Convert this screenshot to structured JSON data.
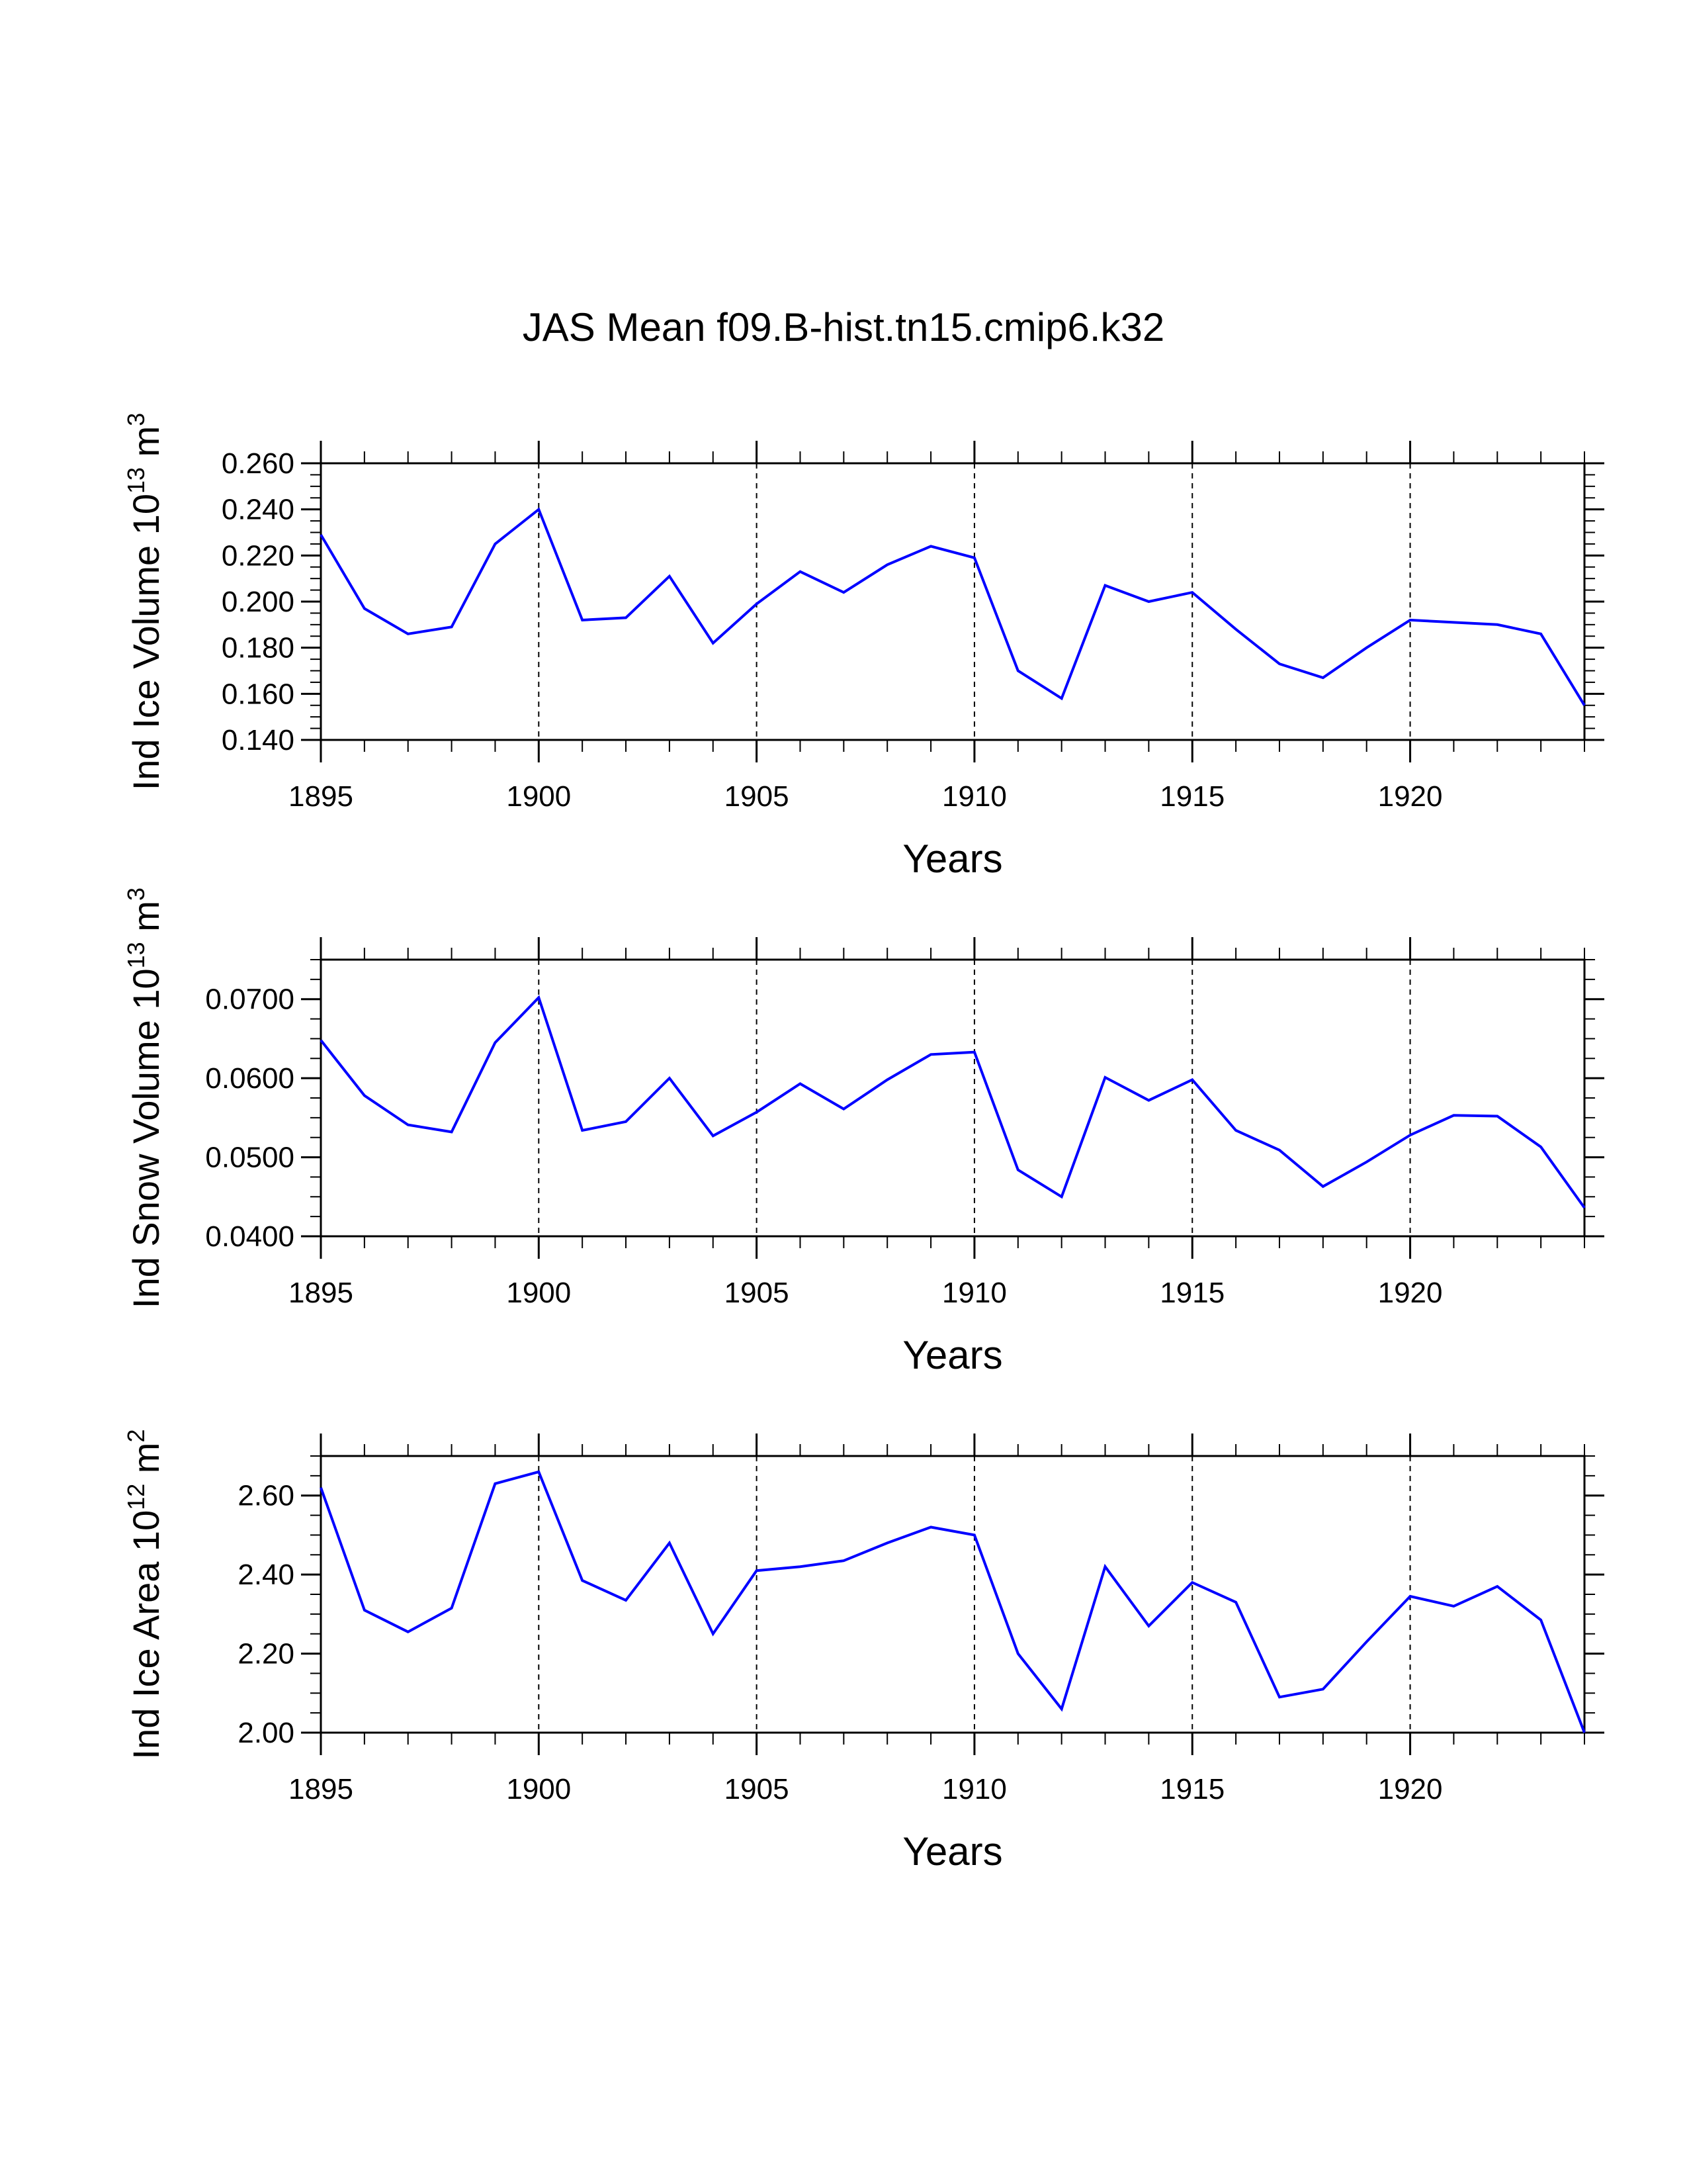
{
  "title": "JAS Mean f09.B-hist.tn15.cmip6.k32",
  "colors": {
    "line": "#0000ff",
    "axis": "#000000",
    "grid": "#000000"
  },
  "chart_data": [
    {
      "type": "line",
      "id": "ice-volume",
      "title": "",
      "ylabel_main": "Ind Ice Volume 10",
      "ylabel_exp": "13",
      "ylabel_unit": "m",
      "ylabel_unit_exp": "3",
      "xlabel": "Years",
      "xlim": [
        1895,
        1924
      ],
      "ylim": [
        0.14,
        0.26
      ],
      "yticks": [
        "0.140",
        "0.160",
        "0.180",
        "0.200",
        "0.220",
        "0.240",
        "0.260"
      ],
      "ytick_values": [
        0.14,
        0.16,
        0.18,
        0.2,
        0.22,
        0.24,
        0.26
      ],
      "xticks": [
        "1895",
        "1900",
        "1905",
        "1910",
        "1915",
        "1920"
      ],
      "xtick_values": [
        1895,
        1900,
        1905,
        1910,
        1915,
        1920
      ],
      "x": [
        1895,
        1896,
        1897,
        1898,
        1899,
        1900,
        1901,
        1902,
        1903,
        1904,
        1905,
        1906,
        1907,
        1908,
        1909,
        1910,
        1911,
        1912,
        1913,
        1914,
        1915,
        1916,
        1917,
        1918,
        1919,
        1920,
        1921,
        1922,
        1923,
        1924
      ],
      "values": [
        0.229,
        0.197,
        0.186,
        0.189,
        0.225,
        0.24,
        0.192,
        0.193,
        0.211,
        0.182,
        0.199,
        0.213,
        0.204,
        0.216,
        0.224,
        0.219,
        0.17,
        0.158,
        0.207,
        0.2,
        0.204,
        0.188,
        0.173,
        0.167,
        0.18,
        0.192,
        0.191,
        0.19,
        0.186,
        0.155
      ]
    },
    {
      "type": "line",
      "id": "snow-volume",
      "title": "",
      "ylabel_main": "Ind Snow Volume 10",
      "ylabel_exp": "13",
      "ylabel_unit": "m",
      "ylabel_unit_exp": "3",
      "xlabel": "Years",
      "xlim": [
        1895,
        1924
      ],
      "ylim": [
        0.04,
        0.075
      ],
      "yticks": [
        "0.0400",
        "0.0500",
        "0.0600",
        "0.0700"
      ],
      "ytick_values": [
        0.04,
        0.05,
        0.06,
        0.07
      ],
      "xticks": [
        "1895",
        "1900",
        "1905",
        "1910",
        "1915",
        "1920"
      ],
      "xtick_values": [
        1895,
        1900,
        1905,
        1910,
        1915,
        1920
      ],
      "x": [
        1895,
        1896,
        1897,
        1898,
        1899,
        1900,
        1901,
        1902,
        1903,
        1904,
        1905,
        1906,
        1907,
        1908,
        1909,
        1910,
        1911,
        1912,
        1913,
        1914,
        1915,
        1916,
        1917,
        1918,
        1919,
        1920,
        1921,
        1922,
        1923,
        1924
      ],
      "values": [
        0.0648,
        0.0578,
        0.0541,
        0.0532,
        0.0645,
        0.0702,
        0.0534,
        0.0545,
        0.06,
        0.0527,
        0.0557,
        0.0593,
        0.0561,
        0.0598,
        0.063,
        0.0633,
        0.0484,
        0.045,
        0.0601,
        0.0572,
        0.0598,
        0.0534,
        0.0509,
        0.0463,
        0.0494,
        0.0528,
        0.0553,
        0.0552,
        0.0513,
        0.0436
      ]
    },
    {
      "type": "line",
      "id": "ice-area",
      "title": "",
      "ylabel_main": "Ind Ice Area 10",
      "ylabel_exp": "12",
      "ylabel_unit": "m",
      "ylabel_unit_exp": "2",
      "xlabel": "Years",
      "xlim": [
        1895,
        1924
      ],
      "ylim": [
        2.0,
        2.7
      ],
      "yticks": [
        "2.00",
        "2.20",
        "2.40",
        "2.60"
      ],
      "ytick_values": [
        2.0,
        2.2,
        2.4,
        2.6
      ],
      "xticks": [
        "1895",
        "1900",
        "1905",
        "1910",
        "1915",
        "1920"
      ],
      "xtick_values": [
        1895,
        1900,
        1905,
        1910,
        1915,
        1920
      ],
      "x": [
        1895,
        1896,
        1897,
        1898,
        1899,
        1900,
        1901,
        1902,
        1903,
        1904,
        1905,
        1906,
        1907,
        1908,
        1909,
        1910,
        1911,
        1912,
        1913,
        1914,
        1915,
        1916,
        1917,
        1918,
        1919,
        1920,
        1921,
        1922,
        1923,
        1924
      ],
      "values": [
        2.62,
        2.31,
        2.255,
        2.315,
        2.63,
        2.66,
        2.385,
        2.335,
        2.48,
        2.25,
        2.41,
        2.42,
        2.435,
        2.48,
        2.52,
        2.5,
        2.2,
        2.06,
        2.42,
        2.27,
        2.38,
        2.33,
        2.09,
        2.11,
        2.23,
        2.345,
        2.32,
        2.37,
        2.285,
        2.0
      ]
    }
  ]
}
